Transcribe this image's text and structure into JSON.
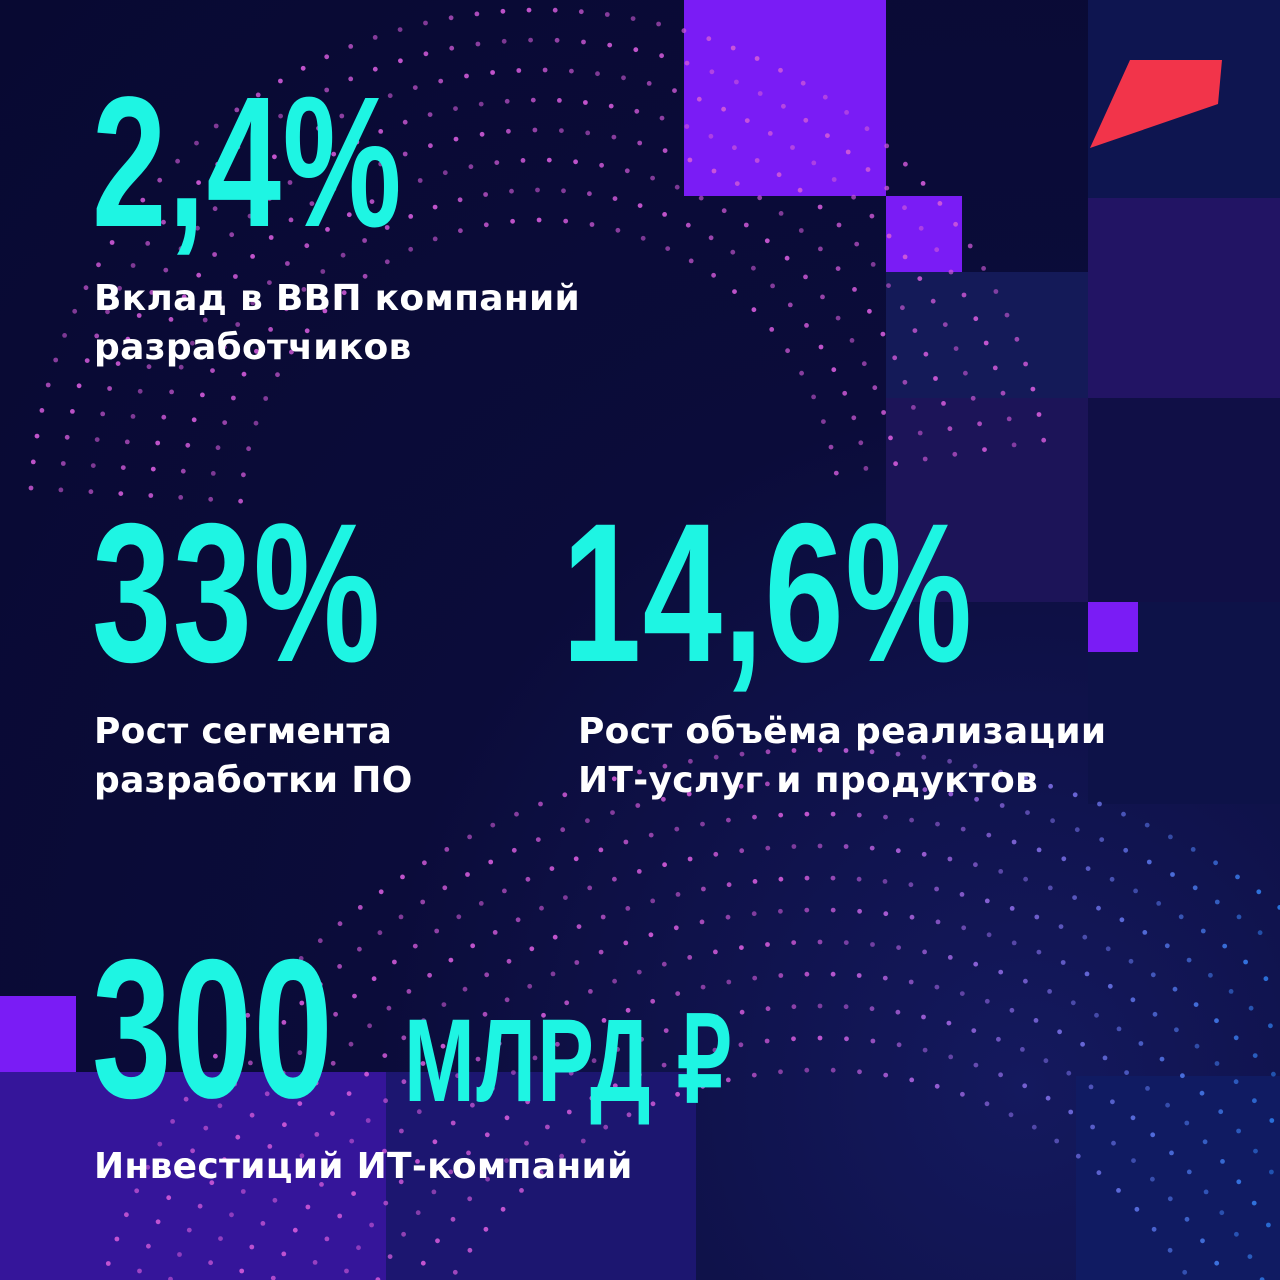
{
  "colors": {
    "accent_cyan": "#1ef5e3",
    "purple_block": "#7a1cf5",
    "logo_red": "#f2344a",
    "dot_magenta": "#d05ad8",
    "dot_blue": "#2a7be8",
    "background": "#0a0b33"
  },
  "logo": {
    "icon": "red-parallelogram-logo-icon"
  },
  "stats": [
    {
      "value": "2,4%",
      "caption": [
        "Вклад в ВВП компаний",
        "разработчиков"
      ]
    },
    {
      "value": "33%",
      "caption": [
        "Рост сегмента",
        "разработки ПО"
      ]
    },
    {
      "value": "14,6%",
      "caption": [
        "Рост объёма реализации",
        "ИТ-услуг и продуктов"
      ]
    },
    {
      "value": "300",
      "unit": "МЛРД ₽",
      "caption": [
        "Инвестиций ИТ-компаний"
      ]
    }
  ]
}
